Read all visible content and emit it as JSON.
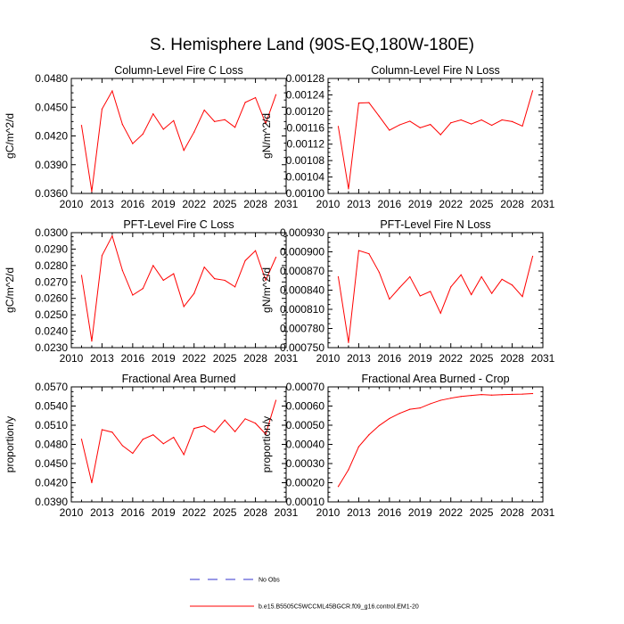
{
  "title": "S. Hemisphere Land (90S-EQ,180W-180E)",
  "colors": {
    "series": "#ff0000",
    "obs": "#3333cc",
    "axis": "#000000"
  },
  "legend": [
    {
      "label": "No Obs",
      "style": "dashed",
      "color": "#3333cc"
    },
    {
      "label": "b.e15.B5505C5WCCML45BGCR.f09_g16.control.EM1-20",
      "style": "solid",
      "color": "#ff0000"
    }
  ],
  "chart_data": [
    {
      "type": "line",
      "title": "Column-Level Fire C Loss",
      "ylabel": "gC/m^2/d",
      "xlim": [
        2010,
        2031
      ],
      "xticks": [
        "2010",
        "2013",
        "2016",
        "2019",
        "2022",
        "2025",
        "2028",
        "2031"
      ],
      "ylim": [
        0.036,
        0.048
      ],
      "yticks": [
        "0.0360",
        "0.0390",
        "0.0420",
        "0.0450",
        "0.0480"
      ],
      "x": [
        2011,
        2012,
        2013,
        2014,
        2015,
        2016,
        2017,
        2018,
        2019,
        2020,
        2021,
        2022,
        2023,
        2024,
        2025,
        2026,
        2027,
        2028,
        2029,
        2030
      ],
      "series": [
        {
          "values": [
            0.0431,
            0.0362,
            0.0448,
            0.0467,
            0.0432,
            0.0412,
            0.0422,
            0.0443,
            0.0427,
            0.0436,
            0.0405,
            0.0424,
            0.0447,
            0.0435,
            0.0437,
            0.0429,
            0.0455,
            0.046,
            0.0433,
            0.0463
          ]
        }
      ]
    },
    {
      "type": "line",
      "title": "Column-Level Fire N Loss",
      "ylabel": "gN/m^2/d",
      "xlim": [
        2010,
        2031
      ],
      "xticks": [
        "2010",
        "2013",
        "2016",
        "2019",
        "2022",
        "2025",
        "2028",
        "2031"
      ],
      "ylim": [
        0.001,
        0.00128
      ],
      "yticks": [
        "0.00100",
        "0.00104",
        "0.00108",
        "0.00112",
        "0.00116",
        "0.00120",
        "0.00124",
        "0.00128"
      ],
      "x": [
        2011,
        2012,
        2013,
        2014,
        2015,
        2016,
        2017,
        2018,
        2019,
        2020,
        2021,
        2022,
        2023,
        2024,
        2025,
        2026,
        2027,
        2028,
        2029,
        2030
      ],
      "series": [
        {
          "values": [
            0.001163,
            0.001011,
            0.00122,
            0.001221,
            0.001188,
            0.001154,
            0.001167,
            0.001176,
            0.00116,
            0.001168,
            0.001143,
            0.001172,
            0.001179,
            0.001169,
            0.001179,
            0.001166,
            0.001179,
            0.001175,
            0.001164,
            0.00125
          ]
        }
      ]
    },
    {
      "type": "line",
      "title": "PFT-Level Fire C Loss",
      "ylabel": "gC/m^2/d",
      "xlim": [
        2010,
        2031
      ],
      "xticks": [
        "2010",
        "2013",
        "2016",
        "2019",
        "2022",
        "2025",
        "2028",
        "2031"
      ],
      "ylim": [
        0.023,
        0.03
      ],
      "yticks": [
        "0.0230",
        "0.0240",
        "0.0250",
        "0.0260",
        "0.0270",
        "0.0280",
        "0.0290",
        "0.0300"
      ],
      "x": [
        2011,
        2012,
        2013,
        2014,
        2015,
        2016,
        2017,
        2018,
        2019,
        2020,
        2021,
        2022,
        2023,
        2024,
        2025,
        2026,
        2027,
        2028,
        2029,
        2030
      ],
      "series": [
        {
          "values": [
            0.0274,
            0.0234,
            0.0286,
            0.0298,
            0.0277,
            0.0262,
            0.0266,
            0.028,
            0.0271,
            0.0275,
            0.0255,
            0.0263,
            0.0279,
            0.0272,
            0.0271,
            0.0267,
            0.0283,
            0.0289,
            0.0271,
            0.0285
          ]
        }
      ]
    },
    {
      "type": "line",
      "title": "PFT-Level Fire N Loss",
      "ylabel": "gN/m^2/d",
      "xlim": [
        2010,
        2031
      ],
      "xticks": [
        "2010",
        "2013",
        "2016",
        "2019",
        "2022",
        "2025",
        "2028",
        "2031"
      ],
      "ylim": [
        0.00075,
        0.00093
      ],
      "yticks": [
        "0.000750",
        "0.000780",
        "0.000810",
        "0.000840",
        "0.000870",
        "0.000900",
        "0.000930"
      ],
      "x": [
        2011,
        2012,
        2013,
        2014,
        2015,
        2016,
        2017,
        2018,
        2019,
        2020,
        2021,
        2022,
        2023,
        2024,
        2025,
        2026,
        2027,
        2028,
        2029,
        2030
      ],
      "series": [
        {
          "values": [
            0.000861,
            0.000758,
            0.000902,
            0.000897,
            0.000868,
            0.000826,
            0.000844,
            0.000861,
            0.000831,
            0.000838,
            0.000804,
            0.000845,
            0.000864,
            0.000833,
            0.000861,
            0.000835,
            0.000857,
            0.000848,
            0.00083,
            0.000893
          ]
        }
      ]
    },
    {
      "type": "line",
      "title": "Fractional Area Burned",
      "ylabel": "proportion/y",
      "xlim": [
        2010,
        2031
      ],
      "xticks": [
        "2010",
        "2013",
        "2016",
        "2019",
        "2022",
        "2025",
        "2028",
        "2031"
      ],
      "ylim": [
        0.039,
        0.057
      ],
      "yticks": [
        "0.0390",
        "0.0420",
        "0.0450",
        "0.0480",
        "0.0510",
        "0.0540",
        "0.0570"
      ],
      "x": [
        2011,
        2012,
        2013,
        2014,
        2015,
        2016,
        2017,
        2018,
        2019,
        2020,
        2021,
        2022,
        2023,
        2024,
        2025,
        2026,
        2027,
        2028,
        2029,
        2030
      ],
      "series": [
        {
          "values": [
            0.0488,
            0.042,
            0.0503,
            0.0499,
            0.0478,
            0.0466,
            0.0488,
            0.0495,
            0.0481,
            0.0491,
            0.0464,
            0.0505,
            0.0509,
            0.0499,
            0.0518,
            0.05,
            0.052,
            0.0513,
            0.0496,
            0.0549
          ]
        }
      ]
    },
    {
      "type": "line",
      "title": "Fractional Area Burned - Crop",
      "ylabel": "proportion/y",
      "xlim": [
        2010,
        2031
      ],
      "xticks": [
        "2010",
        "2013",
        "2016",
        "2019",
        "2022",
        "2025",
        "2028",
        "2031"
      ],
      "ylim": [
        0.0001,
        0.0007
      ],
      "yticks": [
        "0.00010",
        "0.00020",
        "0.00030",
        "0.00040",
        "0.00050",
        "0.00060",
        "0.00070"
      ],
      "x": [
        2011,
        2012,
        2013,
        2014,
        2015,
        2016,
        2017,
        2018,
        2019,
        2020,
        2021,
        2022,
        2023,
        2024,
        2025,
        2026,
        2027,
        2028,
        2029,
        2030
      ],
      "series": [
        {
          "values": [
            0.00018,
            0.000268,
            0.000388,
            0.00045,
            0.000498,
            0.000535,
            0.000562,
            0.000583,
            0.00059,
            0.000612,
            0.00063,
            0.000641,
            0.00065,
            0.000655,
            0.00066,
            0.000657,
            0.000659,
            0.000661,
            0.000662,
            0.000665
          ]
        }
      ]
    }
  ]
}
